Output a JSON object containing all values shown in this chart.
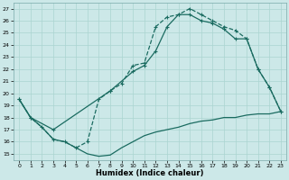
{
  "xlabel": "Humidex (Indice chaleur)",
  "xlim": [
    -0.5,
    23.5
  ],
  "ylim": [
    14.5,
    27.5
  ],
  "xticks": [
    0,
    1,
    2,
    3,
    4,
    5,
    6,
    7,
    8,
    9,
    10,
    11,
    12,
    13,
    14,
    15,
    16,
    17,
    18,
    19,
    20,
    21,
    22,
    23
  ],
  "yticks": [
    15,
    16,
    17,
    18,
    19,
    20,
    21,
    22,
    23,
    24,
    25,
    26,
    27
  ],
  "bg_color": "#cce8e8",
  "line_color": "#1a6b60",
  "grid_color": "#aad4d0",
  "line1_x": [
    0,
    1,
    2,
    3,
    4,
    5,
    6,
    7,
    8,
    9,
    10,
    11,
    12,
    13,
    14,
    15,
    16,
    17,
    18,
    19,
    20,
    21,
    22,
    23
  ],
  "line1_y": [
    19.5,
    18.0,
    17.2,
    16.2,
    16.0,
    15.5,
    15.0,
    14.8,
    14.9,
    15.5,
    16.0,
    16.5,
    16.8,
    17.0,
    17.2,
    17.5,
    17.7,
    17.8,
    18.0,
    18.0,
    18.2,
    18.3,
    18.3,
    18.5
  ],
  "line2_x": [
    0,
    1,
    2,
    3,
    4,
    5,
    6,
    7,
    8,
    9,
    10,
    11,
    12,
    13,
    14,
    15,
    16,
    17,
    18,
    19,
    20,
    21,
    22,
    23
  ],
  "line2_y": [
    19.5,
    18.0,
    17.2,
    16.2,
    16.0,
    15.5,
    16.0,
    19.5,
    20.2,
    20.8,
    22.3,
    22.5,
    25.5,
    26.3,
    26.5,
    27.0,
    26.5,
    26.0,
    25.5,
    25.2,
    24.5,
    22.0,
    20.5,
    18.5
  ],
  "line3_x": [
    0,
    1,
    3,
    8,
    10,
    11,
    12,
    13,
    14,
    15,
    16,
    17,
    18,
    19,
    20,
    21,
    22,
    23
  ],
  "line3_y": [
    19.5,
    18.0,
    17.0,
    20.2,
    21.8,
    22.3,
    23.5,
    25.5,
    26.5,
    26.5,
    26.0,
    25.8,
    25.3,
    24.5,
    24.5,
    22.0,
    20.5,
    18.5
  ]
}
